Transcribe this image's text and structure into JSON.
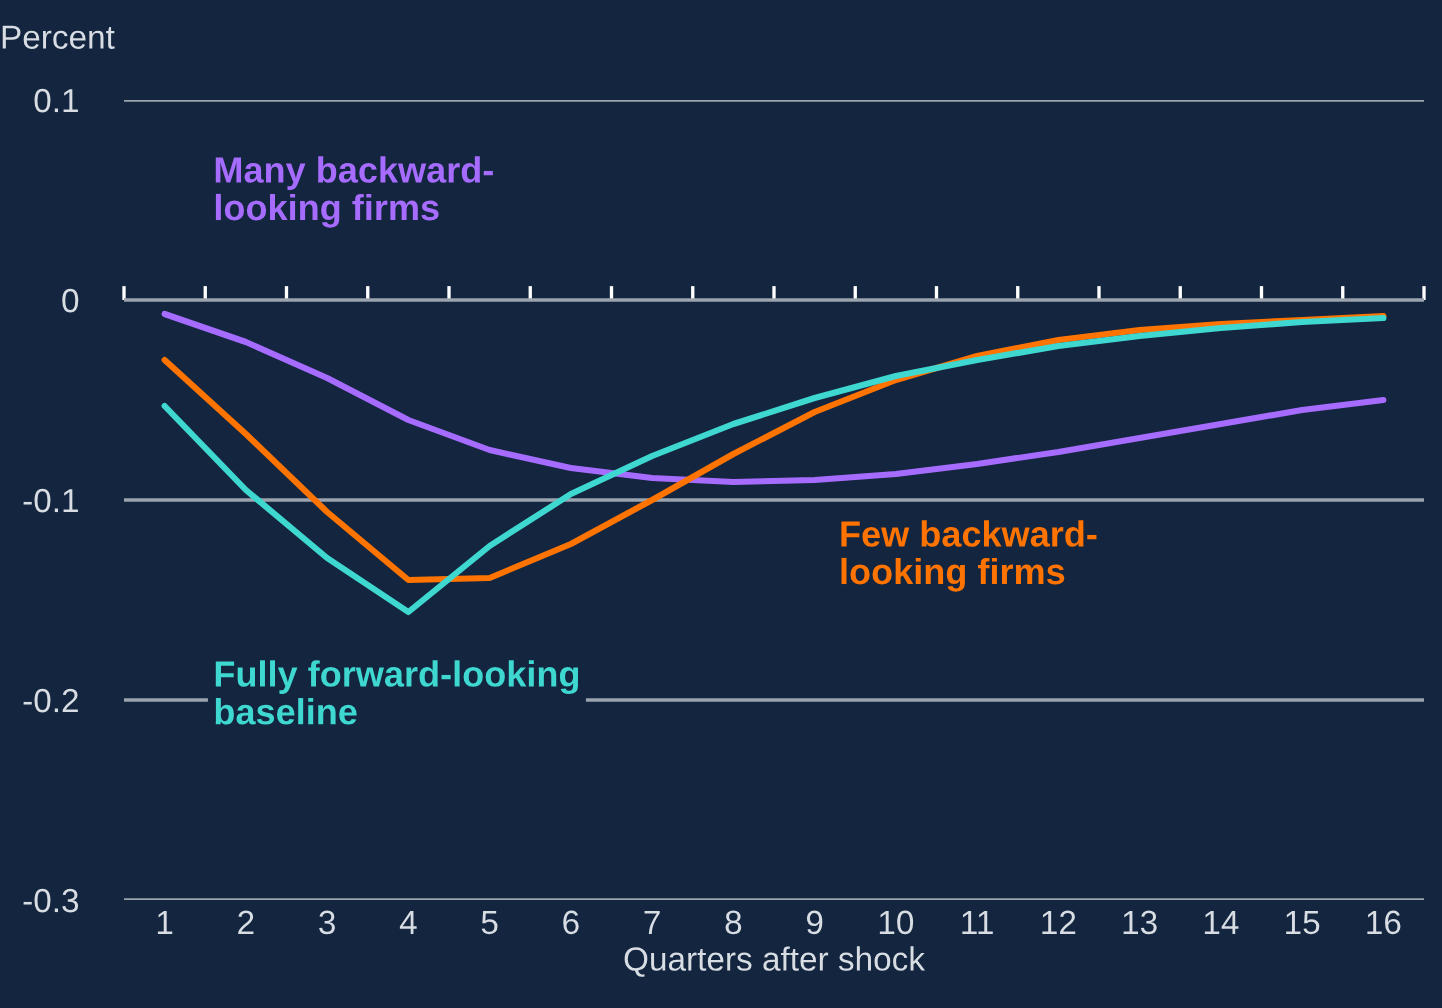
{
  "chart_data": {
    "type": "line",
    "ylabel": "Percent",
    "xlabel": "Quarters after shock",
    "categories": [
      "1",
      "2",
      "3",
      "4",
      "5",
      "6",
      "7",
      "8",
      "9",
      "10",
      "11",
      "12",
      "13",
      "14",
      "15",
      "16"
    ],
    "series": [
      {
        "name": "Many backward-\nlooking firms",
        "color": "#a66cff",
        "values": [
          -0.007,
          -0.021,
          -0.039,
          -0.06,
          -0.075,
          -0.084,
          -0.089,
          -0.091,
          -0.09,
          -0.087,
          -0.082,
          -0.076,
          -0.069,
          -0.062,
          -0.055,
          -0.05
        ]
      },
      {
        "name": "Few backward-\nlooking firms",
        "color": "#ff7300",
        "values": [
          -0.03,
          -0.067,
          -0.106,
          -0.14,
          -0.139,
          -0.122,
          -0.1,
          -0.077,
          -0.056,
          -0.04,
          -0.028,
          -0.02,
          -0.015,
          -0.012,
          -0.01,
          -0.008
        ]
      },
      {
        "name": "Fully forward-looking\nbaseline",
        "color": "#3ed8d0",
        "values": [
          -0.053,
          -0.095,
          -0.129,
          -0.156,
          -0.123,
          -0.097,
          -0.078,
          -0.062,
          -0.049,
          -0.038,
          -0.03,
          -0.023,
          -0.018,
          -0.014,
          -0.011,
          -0.009
        ]
      }
    ],
    "ylim": [
      -0.3,
      0.1
    ],
    "yticks": [
      -0.3,
      -0.2,
      -0.1,
      0,
      0.1
    ],
    "grid": "y",
    "legend": false
  }
}
